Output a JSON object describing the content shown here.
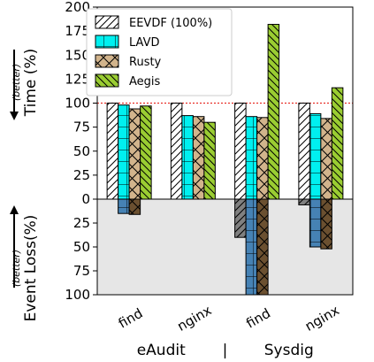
{
  "chart_data": {
    "type": "bar",
    "colors": {
      "EEVDF (100%)": "#ffffff",
      "LAVD": "#00f0f0",
      "Rusty": "#d2b48c",
      "Aegis": "#9acd32",
      "loss_EEVDF (100%)": "#808080",
      "loss_LAVD": "#4682b4",
      "loss_Rusty": "#6b5030",
      "loss_Aegis": "#556b2f",
      "reference_line": "#e8302a",
      "loss_background": "#e6e6e6"
    },
    "top": {
      "ylabel": "Time (%)",
      "ylabel_note": "(better)",
      "ylim": [
        0,
        200
      ],
      "yticks": [
        "0",
        "25",
        "50",
        "75",
        "100",
        "125",
        "150",
        "175",
        "200"
      ],
      "reference_line": 100
    },
    "bottom": {
      "ylabel": "Event Loss(%)",
      "ylabel_note": "(better)",
      "ylim": [
        0,
        100
      ],
      "yticks": [
        "25",
        "50",
        "75",
        "100"
      ]
    },
    "categories": [
      "find",
      "nginx",
      "find",
      "nginx"
    ],
    "groups": [
      {
        "label": "eAudit",
        "categories": [
          "find",
          "nginx"
        ]
      },
      {
        "label": "Sysdig",
        "categories": [
          "find",
          "nginx"
        ]
      }
    ],
    "group_separator": "|",
    "legend_position": "top-center",
    "series": [
      {
        "name": "EEVDF (100%)",
        "time": [
          100,
          100,
          100,
          100
        ],
        "event_loss": [
          0,
          0,
          40,
          6
        ],
        "hatch": "diagonal"
      },
      {
        "name": "LAVD",
        "time": [
          98,
          87,
          86,
          89
        ],
        "event_loss": [
          15,
          0,
          100,
          50
        ],
        "hatch": "grid"
      },
      {
        "name": "Rusty",
        "time": [
          94,
          86,
          85,
          84
        ],
        "event_loss": [
          16,
          0,
          100,
          52
        ],
        "hatch": "cross"
      },
      {
        "name": "Aegis",
        "time": [
          97,
          80,
          182,
          116
        ],
        "event_loss": [
          0,
          0,
          0,
          0
        ],
        "hatch": "backdiag"
      }
    ]
  }
}
